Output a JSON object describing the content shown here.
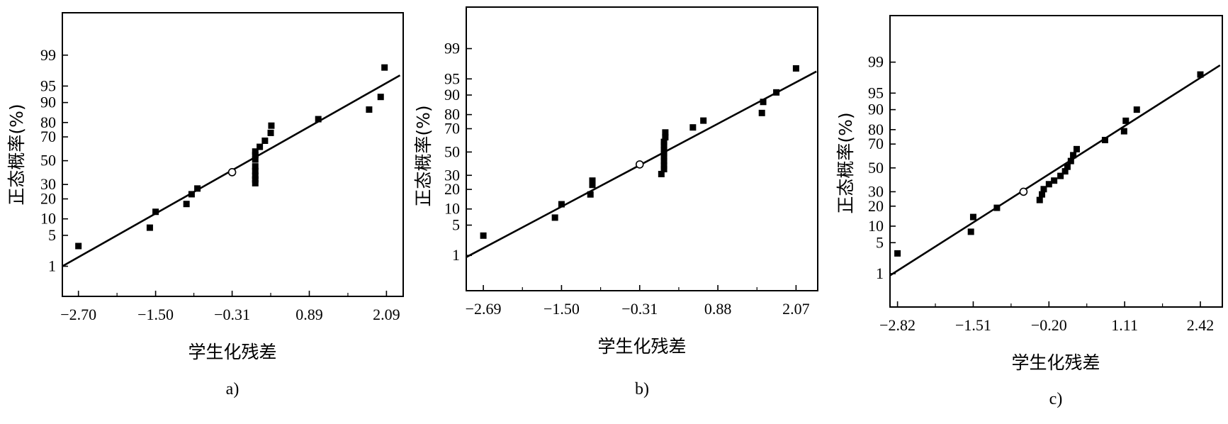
{
  "chart_data": [
    {
      "type": "scatter",
      "panel_label": "a)",
      "xlabel": "学生化残差",
      "ylabel": "正态概率(%)",
      "x_ticks": [
        -2.7,
        -1.5,
        -0.31,
        0.89,
        2.09
      ],
      "x_tick_labels": [
        "−2.70",
        "−1.50",
        "−0.31",
        "0.89",
        "2.09"
      ],
      "xlim": [
        -2.95,
        2.35
      ],
      "y_ticks": [
        1,
        5,
        10,
        20,
        30,
        50,
        70,
        80,
        90,
        95,
        99
      ],
      "y_tick_labels": [
        "1",
        "5",
        "10",
        "20",
        "30",
        "50",
        "70",
        "80",
        "90",
        "95",
        "99"
      ],
      "ylim_z": [
        -2.99,
        3.26
      ],
      "scale": "normal-probability",
      "fit_line": [
        [
          -2.95,
          1.0
        ],
        [
          2.3,
          97.0
        ]
      ],
      "center_point": [
        -0.31,
        40
      ],
      "points": [
        [
          -2.7,
          3
        ],
        [
          -1.59,
          7
        ],
        [
          -1.5,
          13
        ],
        [
          -1.02,
          17
        ],
        [
          -0.94,
          23
        ],
        [
          -0.85,
          27
        ],
        [
          0.05,
          31
        ],
        [
          0.05,
          34
        ],
        [
          0.05,
          37
        ],
        [
          0.05,
          41
        ],
        [
          0.05,
          45
        ],
        [
          0.05,
          51
        ],
        [
          0.05,
          55
        ],
        [
          0.05,
          58
        ],
        [
          0.12,
          62
        ],
        [
          0.2,
          67
        ],
        [
          0.29,
          73
        ],
        [
          0.3,
          78
        ],
        [
          1.03,
          82
        ],
        [
          1.82,
          87
        ],
        [
          2.0,
          92
        ],
        [
          2.06,
          98
        ]
      ]
    },
    {
      "type": "scatter",
      "panel_label": "b)",
      "xlabel": "学生化残差",
      "ylabel": "正态概率(%)",
      "x_ticks": [
        -2.69,
        -1.5,
        -0.31,
        0.88,
        2.07
      ],
      "x_tick_labels": [
        "−2.69",
        "−1.50",
        "−0.31",
        "0.88",
        "2.07"
      ],
      "xlim": [
        -2.95,
        2.4
      ],
      "y_ticks": [
        1,
        5,
        10,
        20,
        30,
        50,
        70,
        80,
        90,
        95,
        99
      ],
      "y_tick_labels": [
        "1",
        "5",
        "10",
        "20",
        "30",
        "50",
        "70",
        "80",
        "90",
        "95",
        "99"
      ],
      "ylim_z": [
        -3.12,
        3.26
      ],
      "scale": "normal-probability",
      "fit_line": [
        [
          -2.95,
          0.9
        ],
        [
          2.38,
          96.5
        ]
      ],
      "center_point": [
        -0.31,
        39
      ],
      "points": [
        [
          -2.69,
          3
        ],
        [
          -1.6,
          7
        ],
        [
          -1.5,
          12
        ],
        [
          -1.06,
          17
        ],
        [
          -1.03,
          23
        ],
        [
          -1.03,
          26
        ],
        [
          0.02,
          31
        ],
        [
          0.06,
          35
        ],
        [
          0.06,
          38
        ],
        [
          0.06,
          42
        ],
        [
          0.06,
          46
        ],
        [
          0.06,
          49
        ],
        [
          0.06,
          52
        ],
        [
          0.06,
          56
        ],
        [
          0.06,
          59
        ],
        [
          0.08,
          63
        ],
        [
          0.08,
          67
        ],
        [
          0.5,
          71
        ],
        [
          0.66,
          76
        ],
        [
          1.55,
          81
        ],
        [
          1.57,
          87
        ],
        [
          1.77,
          91
        ],
        [
          2.07,
          97
        ]
      ]
    },
    {
      "type": "scatter",
      "panel_label": "c)",
      "xlabel": "学生化残差",
      "ylabel": "正态概率(%)",
      "x_ticks": [
        -2.82,
        -1.51,
        -0.2,
        1.11,
        2.42
      ],
      "x_tick_labels": [
        "−2.82",
        "−1.51",
        "−0.20",
        "1.11",
        "2.42"
      ],
      "xlim": [
        -2.95,
        2.8
      ],
      "y_ticks": [
        1,
        5,
        10,
        20,
        30,
        50,
        70,
        80,
        90,
        95,
        99
      ],
      "y_tick_labels": [
        "1",
        "5",
        "10",
        "20",
        "30",
        "50",
        "70",
        "80",
        "90",
        "95",
        "99"
      ],
      "ylim_z": [
        -3.06,
        3.35
      ],
      "scale": "normal-probability",
      "fit_line": [
        [
          -2.95,
          0.9
        ],
        [
          2.76,
          98.8
        ]
      ],
      "center_point": [
        -0.64,
        30
      ],
      "points": [
        [
          -2.82,
          3
        ],
        [
          -1.55,
          8
        ],
        [
          -1.51,
          14
        ],
        [
          -1.1,
          19
        ],
        [
          -0.36,
          24
        ],
        [
          -0.32,
          28
        ],
        [
          -0.29,
          32
        ],
        [
          -0.2,
          36
        ],
        [
          -0.11,
          39
        ],
        [
          0.0,
          43
        ],
        [
          0.08,
          47
        ],
        [
          0.12,
          51
        ],
        [
          0.18,
          56
        ],
        [
          0.22,
          61
        ],
        [
          0.28,
          66
        ],
        [
          0.77,
          73
        ],
        [
          1.1,
          79
        ],
        [
          1.13,
          85
        ],
        [
          1.32,
          90
        ],
        [
          2.42,
          98
        ]
      ]
    }
  ]
}
